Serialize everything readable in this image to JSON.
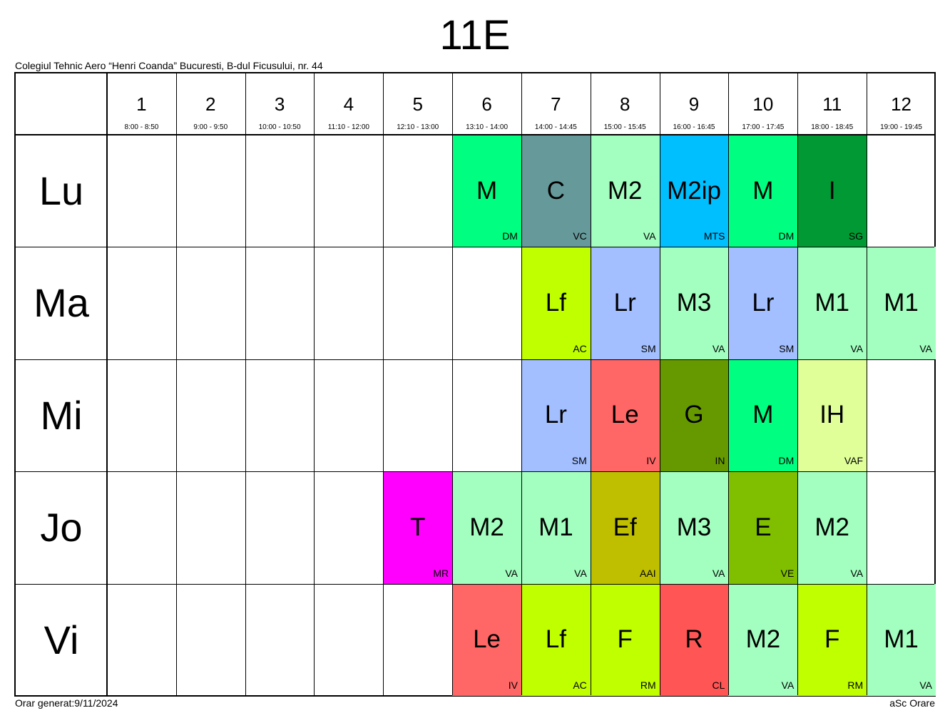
{
  "title": "11E",
  "school": "Colegiul Tehnic Aero “Henri Coanda” Bucuresti, B-dul Ficusului, nr. 44",
  "footer": {
    "generated": "Orar generat:9/11/2024",
    "software": "aSc Orare"
  },
  "periods": [
    {
      "num": "1",
      "time": "8:00 - 8:50"
    },
    {
      "num": "2",
      "time": "9:00 - 9:50"
    },
    {
      "num": "3",
      "time": "10:00 - 10:50"
    },
    {
      "num": "4",
      "time": "11:10 - 12:00"
    },
    {
      "num": "5",
      "time": "12:10 - 13:00"
    },
    {
      "num": "6",
      "time": "13:10 - 14:00"
    },
    {
      "num": "7",
      "time": "14:00 - 14:45"
    },
    {
      "num": "8",
      "time": "15:00 - 15:45"
    },
    {
      "num": "9",
      "time": "16:00 - 16:45"
    },
    {
      "num": "10",
      "time": "17:00 - 17:45"
    },
    {
      "num": "11",
      "time": "18:00 - 18:45"
    },
    {
      "num": "12",
      "time": "19:00 - 19:45"
    }
  ],
  "days": [
    "Lu",
    "Ma",
    "Mi",
    "Jo",
    "Vi"
  ],
  "lessons": [
    {
      "day": 0,
      "period": 6,
      "subject": "M",
      "teacher": "DM",
      "color": "#00ff80"
    },
    {
      "day": 0,
      "period": 7,
      "subject": "C",
      "teacher": "VC",
      "color": "#66999a"
    },
    {
      "day": 0,
      "period": 8,
      "subject": "M2",
      "teacher": "VA",
      "color": "#a3ffc0"
    },
    {
      "day": 0,
      "period": 9,
      "subject": "M2ip",
      "teacher": "MTS",
      "color": "#00bfff"
    },
    {
      "day": 0,
      "period": 10,
      "subject": "M",
      "teacher": "DM",
      "color": "#00ff80"
    },
    {
      "day": 0,
      "period": 11,
      "subject": "I",
      "teacher": "SG",
      "color": "#009933"
    },
    {
      "day": 1,
      "period": 7,
      "subject": "Lf",
      "teacher": "AC",
      "color": "#bfff00"
    },
    {
      "day": 1,
      "period": 8,
      "subject": "Lr",
      "teacher": "SM",
      "color": "#a3bfff"
    },
    {
      "day": 1,
      "period": 9,
      "subject": "M3",
      "teacher": "VA",
      "color": "#a3ffc0"
    },
    {
      "day": 1,
      "period": 10,
      "subject": "Lr",
      "teacher": "SM",
      "color": "#a3bfff"
    },
    {
      "day": 1,
      "period": 11,
      "subject": "M1",
      "teacher": "VA",
      "color": "#a3ffc0"
    },
    {
      "day": 1,
      "period": 12,
      "subject": "M1",
      "teacher": "VA",
      "color": "#a3ffc0"
    },
    {
      "day": 2,
      "period": 7,
      "subject": "Lr",
      "teacher": "SM",
      "color": "#a3bfff"
    },
    {
      "day": 2,
      "period": 8,
      "subject": "Le",
      "teacher": "IV",
      "color": "#ff6666"
    },
    {
      "day": 2,
      "period": 9,
      "subject": "G",
      "teacher": "IN",
      "color": "#669900"
    },
    {
      "day": 2,
      "period": 10,
      "subject": "M",
      "teacher": "DM",
      "color": "#00ff80"
    },
    {
      "day": 2,
      "period": 11,
      "subject": "IH",
      "teacher": "VAF",
      "color": "#e0ff99"
    },
    {
      "day": 3,
      "period": 5,
      "subject": "T",
      "teacher": "MR",
      "color": "#ff00ff"
    },
    {
      "day": 3,
      "period": 6,
      "subject": "M2",
      "teacher": "VA",
      "color": "#a3ffc0"
    },
    {
      "day": 3,
      "period": 7,
      "subject": "M1",
      "teacher": "VA",
      "color": "#a3ffc0"
    },
    {
      "day": 3,
      "period": 8,
      "subject": "Ef",
      "teacher": "AAI",
      "color": "#bfbf00"
    },
    {
      "day": 3,
      "period": 9,
      "subject": "M3",
      "teacher": "VA",
      "color": "#a3ffc0"
    },
    {
      "day": 3,
      "period": 10,
      "subject": "E",
      "teacher": "VE",
      "color": "#80bf00"
    },
    {
      "day": 3,
      "period": 11,
      "subject": "M2",
      "teacher": "VA",
      "color": "#a3ffc0"
    },
    {
      "day": 4,
      "period": 6,
      "subject": "Le",
      "teacher": "IV",
      "color": "#ff6666"
    },
    {
      "day": 4,
      "period": 7,
      "subject": "Lf",
      "teacher": "AC",
      "color": "#bfff00"
    },
    {
      "day": 4,
      "period": 8,
      "subject": "F",
      "teacher": "RM",
      "color": "#bfff00"
    },
    {
      "day": 4,
      "period": 9,
      "subject": "R",
      "teacher": "CL",
      "color": "#ff5555"
    },
    {
      "day": 4,
      "period": 10,
      "subject": "M2",
      "teacher": "VA",
      "color": "#a3ffc0"
    },
    {
      "day": 4,
      "period": 11,
      "subject": "F",
      "teacher": "RM",
      "color": "#bfff00"
    },
    {
      "day": 4,
      "period": 12,
      "subject": "M1",
      "teacher": "VA",
      "color": "#a3ffc0"
    }
  ]
}
